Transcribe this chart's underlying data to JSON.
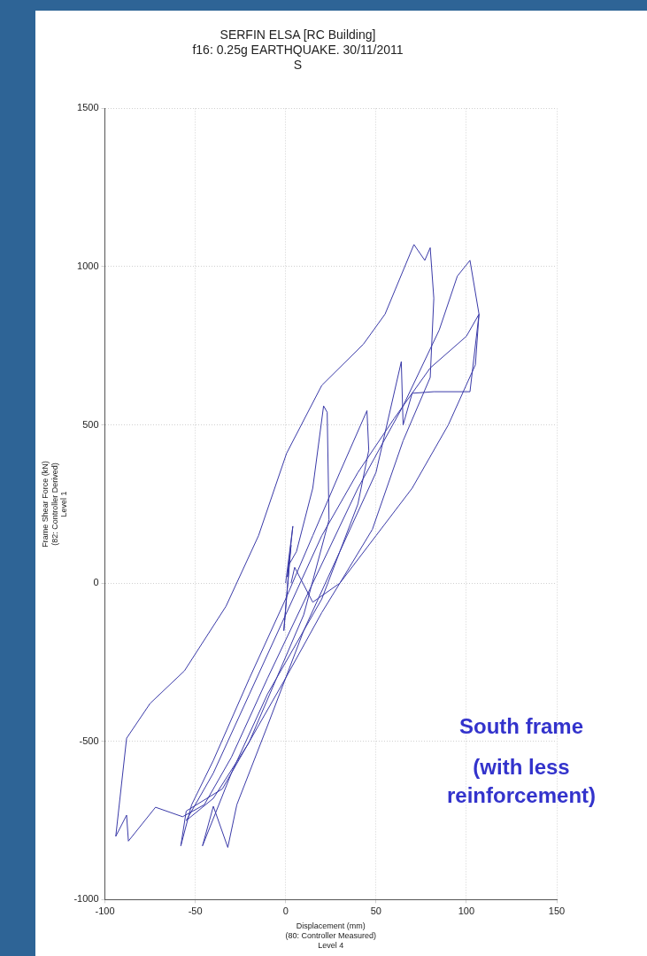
{
  "chart_data": {
    "type": "line",
    "title": "SERFIN ELSA [RC Building]",
    "subtitle": "f16: 0.25g EARTHQUAKE. 30/11/2011\nS",
    "xlabel": "Displacement (mm)\n(80: Controller Measured)\nLevel 4",
    "ylabel": "Frame Shear Force (kN)\n(82: Controller Derived)\nLevel 1",
    "annotations": [
      "South frame",
      "(with less reinforcement)"
    ],
    "xlim": [
      -100,
      150
    ],
    "xticks": [
      -100,
      -50,
      0,
      50,
      100,
      150
    ],
    "ylim": [
      -1000,
      1500
    ],
    "yticks": [
      -1000,
      -500,
      0,
      500,
      1000,
      1500
    ],
    "grid": true,
    "series": [
      {
        "color": "#3a3aa8",
        "x": [
          0,
          4,
          1,
          3,
          -1,
          2,
          6,
          15,
          21,
          23,
          24,
          10,
          -5,
          -20,
          -35,
          -55,
          -58,
          -52,
          -40,
          -20,
          0,
          15,
          30,
          45,
          46,
          40,
          20,
          -10,
          -30,
          -46,
          -40,
          -32,
          -27,
          -10,
          10,
          30,
          50,
          64,
          65,
          70,
          82,
          102,
          107,
          102,
          95,
          85,
          65,
          40,
          15,
          -10,
          -30,
          -45,
          -57,
          -72,
          -87,
          -88,
          -94,
          -88,
          -75,
          -56,
          -33,
          -15,
          0.5,
          20,
          43,
          55,
          71,
          77,
          80,
          82,
          80,
          65,
          48,
          30,
          20,
          0,
          -21,
          -40,
          -55,
          -40,
          -20,
          0,
          20,
          40,
          60,
          80,
          100,
          107,
          105,
          90,
          70,
          50,
          30,
          15,
          5,
          3
        ],
        "values": [
          0,
          180,
          20,
          120,
          -150,
          60,
          100,
          300,
          560,
          540,
          200,
          -100,
          -300,
          -500,
          -650,
          -720,
          -830,
          -700,
          -560,
          -300,
          -50,
          150,
          350,
          545,
          420,
          250,
          -50,
          -350,
          -600,
          -830,
          -705,
          -835,
          -700,
          -450,
          -150,
          100,
          350,
          700,
          500,
          600,
          605,
          605,
          850,
          1020,
          970,
          800,
          560,
          300,
          0,
          -300,
          -550,
          -700,
          -738,
          -708,
          -815,
          -733,
          -800,
          -490,
          -380,
          -277,
          -73,
          150,
          410,
          625,
          755,
          850,
          1070,
          1020,
          1060,
          900,
          650,
          450,
          170,
          0,
          -93,
          -300,
          -510,
          -680,
          -750,
          -600,
          -350,
          -100,
          150,
          350,
          520,
          680,
          780,
          850,
          690,
          500,
          300,
          150,
          0,
          -60,
          50,
          0
        ]
      }
    ]
  }
}
